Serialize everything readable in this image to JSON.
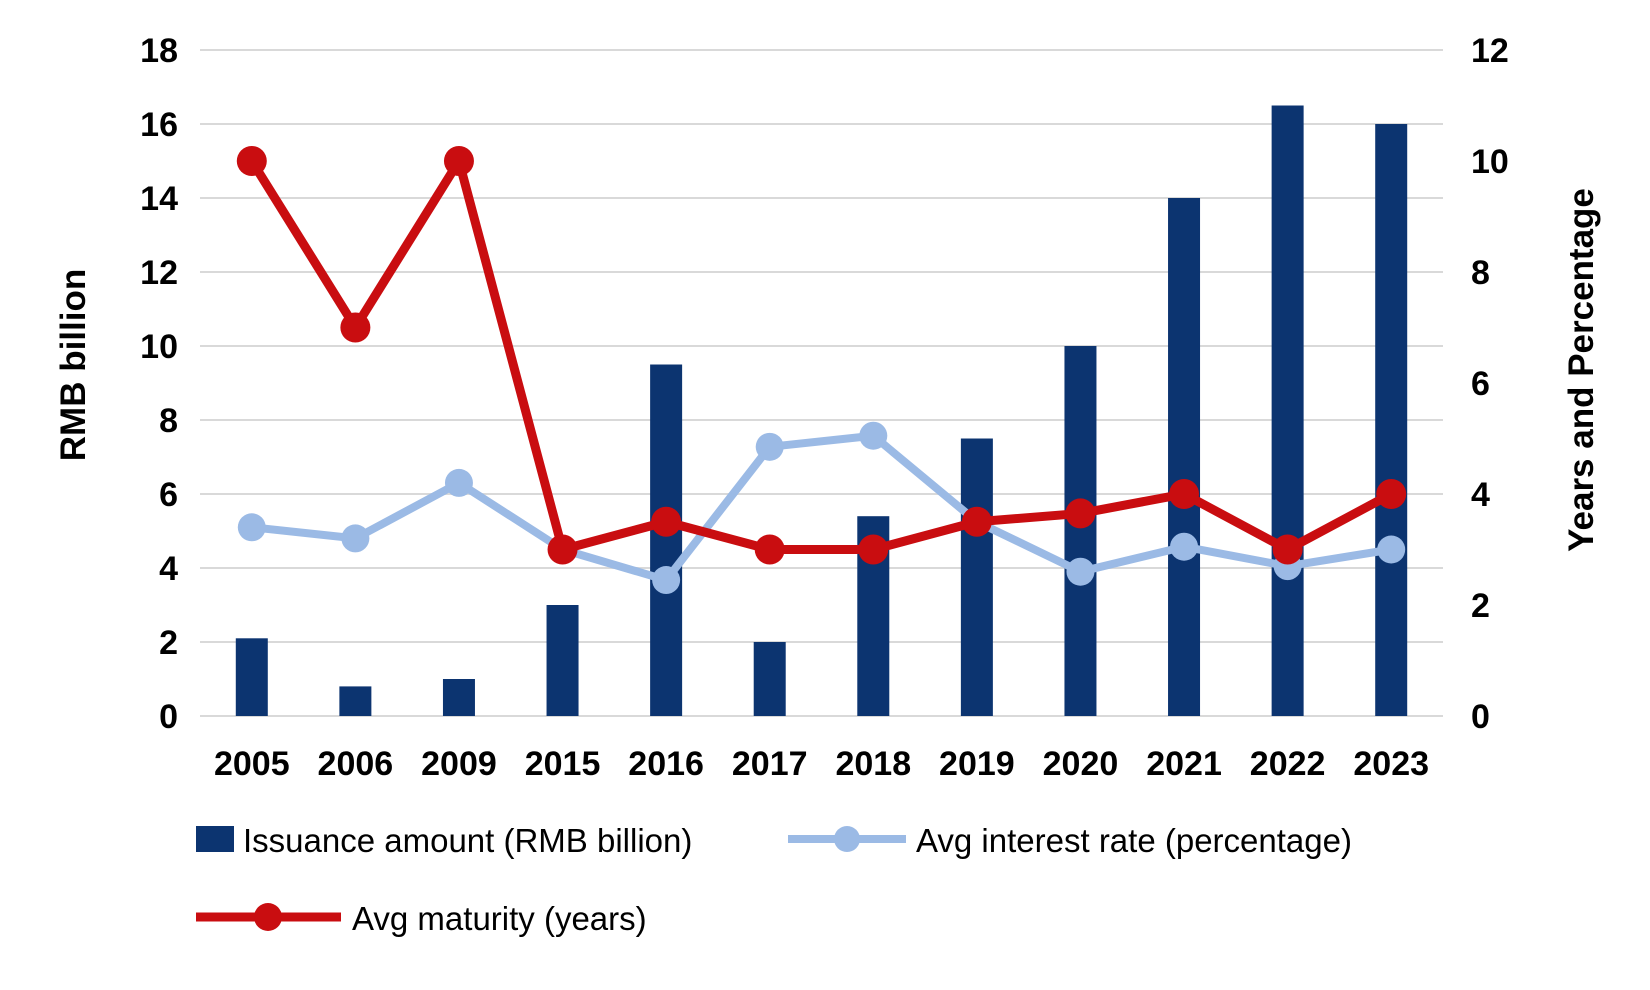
{
  "chart_data": {
    "type": "bar",
    "subtype": "combo-bar-line-dual-axis",
    "categories": [
      "2005",
      "2006",
      "2009",
      "2015",
      "2016",
      "2017",
      "2018",
      "2019",
      "2020",
      "2021",
      "2022",
      "2023"
    ],
    "series": [
      {
        "name": "Issuance amount (RMB billion)",
        "type": "bar",
        "axis": "left",
        "color": "#0c3470",
        "values": [
          2.1,
          0.8,
          1.0,
          3.0,
          9.5,
          2.0,
          5.4,
          7.5,
          10.0,
          14.0,
          16.5,
          16.0
        ]
      },
      {
        "name": "Avg interest rate (percentage)",
        "type": "line",
        "axis": "right",
        "color": "#9bbae5",
        "values": [
          3.4,
          3.2,
          4.2,
          3.0,
          2.45,
          4.85,
          5.05,
          3.5,
          2.6,
          3.05,
          2.7,
          3.0
        ]
      },
      {
        "name": "Avg maturity (years)",
        "type": "line",
        "axis": "right",
        "color": "#c90d10",
        "values": [
          10,
          7,
          10,
          3,
          3.5,
          3,
          3,
          3.5,
          3.65,
          4,
          3,
          4
        ]
      }
    ],
    "left_axis": {
      "label": "RMB billion",
      "min": 0,
      "max": 18,
      "step": 2,
      "ticks": [
        "0",
        "2",
        "4",
        "6",
        "8",
        "10",
        "12",
        "14",
        "16",
        "18"
      ]
    },
    "right_axis": {
      "label": "Years and Percentage",
      "min": 0,
      "max": 12,
      "step": 2,
      "ticks": [
        "0",
        "2",
        "4",
        "6",
        "8",
        "10",
        "12"
      ]
    },
    "grid": "horizontal-only",
    "gridline_color": "#d9d9d9",
    "legend_position": "bottom-left",
    "title": ""
  },
  "legend": {
    "items": [
      {
        "label": "Issuance amount (RMB billion)",
        "swatch": "bar",
        "color": "#0c3470"
      },
      {
        "label": "Avg interest rate (percentage)",
        "swatch": "line-dot",
        "color": "#9bbae5"
      },
      {
        "label": "Avg maturity (years)",
        "swatch": "line-dot",
        "color": "#c90d10"
      }
    ]
  }
}
